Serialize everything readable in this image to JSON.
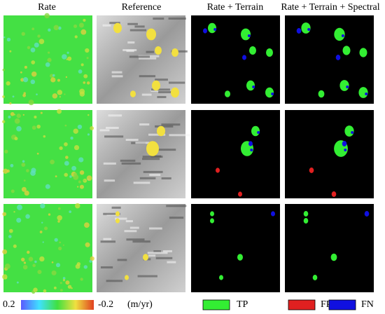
{
  "columns": [
    "Rate",
    "Reference",
    "Rate + Terrain",
    "Rate + Terrain + Spectral"
  ],
  "colorbar": {
    "labels": [
      "0.2",
      "-0.2"
    ],
    "unit": "(m/yr)",
    "colors": [
      "#5a5aff",
      "#40e0ff",
      "#40e040",
      "#f0e040",
      "#e04020"
    ]
  },
  "legend": [
    {
      "label": "TP",
      "color": "#33ee33"
    },
    {
      "label": "FP",
      "color": "#e02020"
    },
    {
      "label": "FN",
      "color": "#1010e0"
    }
  ]
}
